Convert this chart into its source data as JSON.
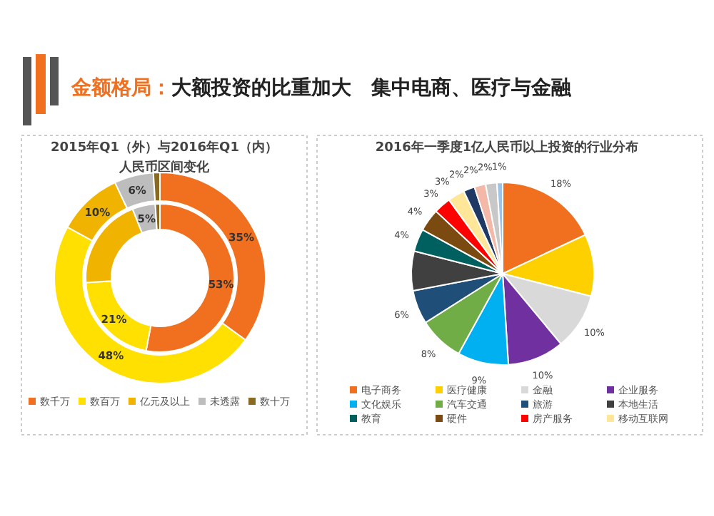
{
  "chart_data": [
    {
      "type": "other",
      "title": "金额格局：",
      "subtitle": "大额投资的比重加大　集中电商、医疗与金融"
    },
    {
      "type": "donut",
      "title": "2015年Q1（外）与2016年Q1（内）",
      "subtitle": "人民币区间变化",
      "categories": [
        "数千万",
        "数百万",
        "亿元及以上",
        "未透露",
        "数十万"
      ],
      "colors": [
        "#f07020",
        "#ffe000",
        "#f0b400",
        "#bdbdbd",
        "#8a6a20"
      ],
      "legend": "bottom",
      "series": [
        {
          "values": [
            35,
            48,
            10,
            6,
            1
          ],
          "value_labels": [
            "35%",
            "48%",
            "10%",
            "6%",
            null
          ]
        },
        {
          "values": [
            53,
            21,
            20,
            5,
            1
          ],
          "value_labels": [
            "53%",
            "21%",
            null,
            "5%",
            null
          ]
        }
      ]
    },
    {
      "type": "pie",
      "title": "2016年一季度1亿人民币以上投资的行业分布",
      "categories": [
        "电子商务",
        "医疗健康",
        "金融",
        "企业服务",
        "文化娱乐",
        "汽车交通",
        "旅游",
        "本地生活",
        "教育",
        "硬件",
        "房产服务",
        "移动互联网",
        null,
        null,
        null,
        null
      ],
      "values": [
        18,
        11,
        10,
        10,
        9,
        8,
        6,
        7,
        4,
        4,
        3,
        3,
        2,
        2,
        2,
        1
      ],
      "value_labels": [
        "18%",
        null,
        "10%",
        "10%",
        "9%",
        "8%",
        "6%",
        null,
        "4%",
        "4%",
        "3%",
        "3%",
        "2%",
        "2%",
        "2%",
        "1%"
      ],
      "colors": [
        "#f07020",
        "#ffd000",
        "#d9d9d9",
        "#7030a0",
        "#00b0f0",
        "#70ad47",
        "#1f4e79",
        "#404040",
        "#006060",
        "#7a4a10",
        "#ff0000",
        "#ffe699",
        "#203864",
        "#f4b8a8",
        "#c8c8c8",
        "#9dc3e6"
      ],
      "legend": "bottom"
    }
  ]
}
